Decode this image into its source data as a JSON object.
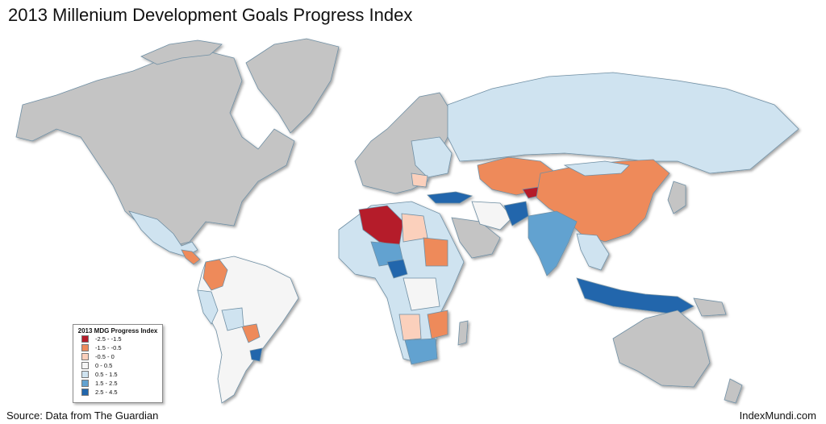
{
  "title": "2013 Millenium Development Goals Progress Index",
  "legend": {
    "title": "2013 MDG Progress Index",
    "items": [
      {
        "label": "-2.5 - -1.5",
        "color": "#b51c2a"
      },
      {
        "label": "-1.5 - -0.5",
        "color": "#ee8a5a"
      },
      {
        "label": "-0.5 - 0",
        "color": "#fbd0bc"
      },
      {
        "label": "0 - 0.5",
        "color": "#f5f5f5"
      },
      {
        "label": "0.5 - 1.5",
        "color": "#cfe3f0"
      },
      {
        "label": "1.5 - 2.5",
        "color": "#62a2d0"
      },
      {
        "label": "2.5 - 4.5",
        "color": "#2166ac"
      }
    ]
  },
  "no_data_color": "#c4c4c4",
  "source": "Source: Data from The Guardian",
  "credit": "IndexMundi.com"
}
